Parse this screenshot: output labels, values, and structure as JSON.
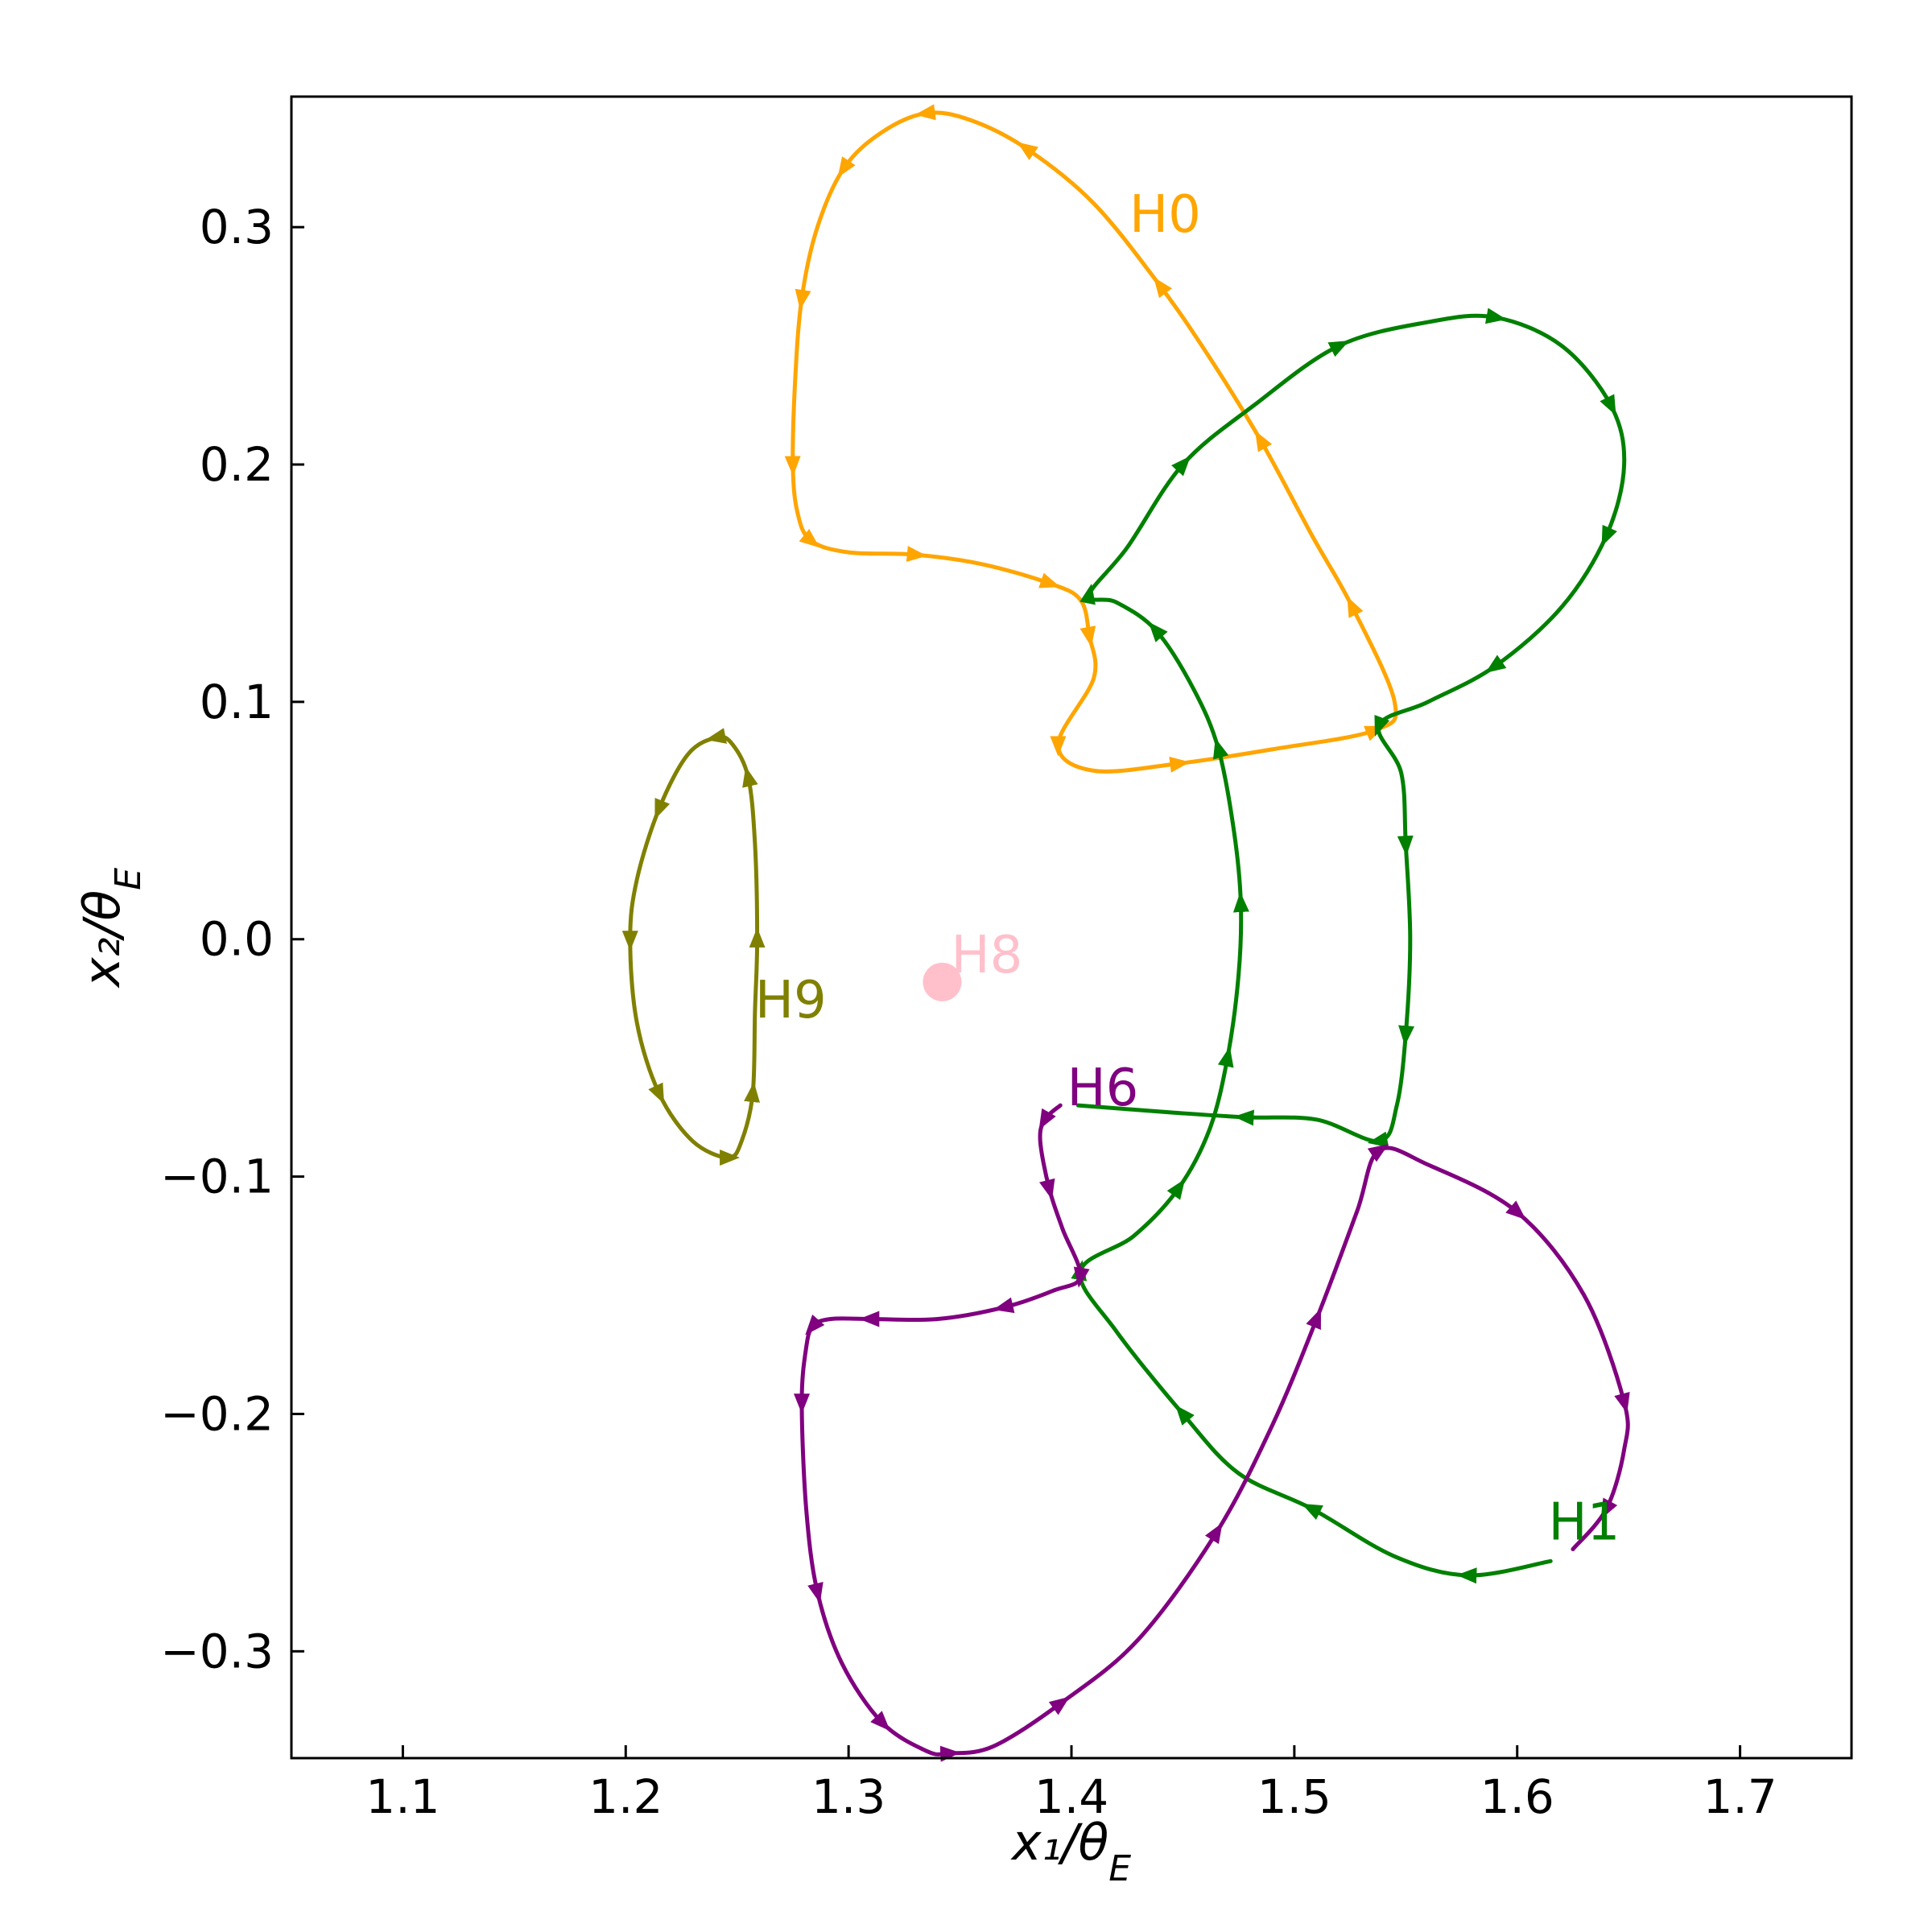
{
  "chart_data": {
    "type": "line",
    "xlabel": "x₁/θ_E",
    "ylabel": "x₂/θ_E",
    "xlim": [
      1.05,
      1.75
    ],
    "ylim": [
      -0.345,
      0.355
    ],
    "xticks": [
      1.1,
      1.2,
      1.3,
      1.4,
      1.5,
      1.6,
      1.7
    ],
    "xtick_labels": [
      "1.1",
      "1.2",
      "1.3",
      "1.4",
      "1.5",
      "1.6",
      "1.7"
    ],
    "yticks": [
      0.3,
      0.2,
      0.1,
      0.0,
      -0.1,
      -0.2,
      -0.3
    ],
    "ytick_labels": [
      "0.3",
      "0.2",
      "0.1",
      "0.0",
      "−0.1",
      "−0.2",
      "−0.3"
    ],
    "grid": false,
    "legend": "none",
    "series": [
      {
        "name": "H0",
        "color": "#FFA500",
        "label_at": [
          1.426,
          0.298
        ],
        "points": [
          [
            1.41,
            0.11
          ],
          [
            1.394,
            0.082
          ],
          [
            1.41,
            0.071
          ],
          [
            1.448,
            0.074
          ],
          [
            1.49,
            0.08
          ],
          [
            1.536,
            0.088
          ],
          [
            1.545,
            0.1
          ],
          [
            1.526,
            0.14
          ],
          [
            1.508,
            0.17
          ],
          [
            1.485,
            0.21
          ],
          [
            1.462,
            0.245
          ],
          [
            1.44,
            0.275
          ],
          [
            1.41,
            0.31
          ],
          [
            1.38,
            0.333
          ],
          [
            1.355,
            0.345
          ],
          [
            1.335,
            0.348
          ],
          [
            1.315,
            0.34
          ],
          [
            1.298,
            0.325
          ],
          [
            1.286,
            0.3
          ],
          [
            1.279,
            0.27
          ],
          [
            1.276,
            0.235
          ],
          [
            1.275,
            0.2
          ],
          [
            1.277,
            0.18
          ],
          [
            1.283,
            0.168
          ],
          [
            1.3,
            0.163
          ],
          [
            1.33,
            0.162
          ],
          [
            1.36,
            0.158
          ],
          [
            1.39,
            0.15
          ],
          [
            1.404,
            0.143
          ],
          [
            1.408,
            0.128
          ],
          [
            1.41,
            0.11
          ]
        ]
      },
      {
        "name": "H1",
        "color": "#008000",
        "label_at": [
          1.614,
          -0.253
        ],
        "points": [
          [
            1.615,
            -0.262
          ],
          [
            1.578,
            -0.268
          ],
          [
            1.545,
            -0.26
          ],
          [
            1.508,
            -0.24
          ],
          [
            1.475,
            -0.225
          ],
          [
            1.45,
            -0.2
          ],
          [
            1.42,
            -0.165
          ],
          [
            1.404,
            -0.14
          ],
          [
            1.428,
            -0.125
          ],
          [
            1.448,
            -0.105
          ],
          [
            1.462,
            -0.08
          ],
          [
            1.47,
            -0.05
          ],
          [
            1.475,
            -0.015
          ],
          [
            1.476,
            0.015
          ],
          [
            1.473,
            0.045
          ],
          [
            1.466,
            0.08
          ],
          [
            1.455,
            0.105
          ],
          [
            1.438,
            0.13
          ],
          [
            1.42,
            0.142
          ],
          [
            1.408,
            0.145
          ],
          [
            1.425,
            0.165
          ],
          [
            1.45,
            0.2
          ],
          [
            1.482,
            0.225
          ],
          [
            1.52,
            0.25
          ],
          [
            1.56,
            0.26
          ],
          [
            1.59,
            0.262
          ],
          [
            1.62,
            0.25
          ],
          [
            1.642,
            0.225
          ],
          [
            1.648,
            0.2
          ],
          [
            1.64,
            0.17
          ],
          [
            1.62,
            0.14
          ],
          [
            1.59,
            0.115
          ],
          [
            1.56,
            0.1
          ],
          [
            1.538,
            0.09
          ],
          [
            1.548,
            0.07
          ],
          [
            1.55,
            0.04
          ],
          [
            1.552,
            0.0
          ],
          [
            1.55,
            -0.04
          ],
          [
            1.546,
            -0.07
          ],
          [
            1.538,
            -0.085
          ],
          [
            1.51,
            -0.076
          ],
          [
            1.478,
            -0.075
          ],
          [
            1.445,
            -0.073
          ],
          [
            1.403,
            -0.07
          ]
        ]
      },
      {
        "name": "H6",
        "color": "#800080",
        "label_at": [
          1.398,
          -0.07
        ],
        "points": [
          [
            1.395,
            -0.07
          ],
          [
            1.388,
            -0.076
          ],
          [
            1.386,
            -0.085
          ],
          [
            1.39,
            -0.105
          ],
          [
            1.396,
            -0.122
          ],
          [
            1.404,
            -0.142
          ],
          [
            1.392,
            -0.148
          ],
          [
            1.37,
            -0.155
          ],
          [
            1.34,
            -0.16
          ],
          [
            1.31,
            -0.16
          ],
          [
            1.292,
            -0.16
          ],
          [
            1.284,
            -0.163
          ],
          [
            1.281,
            -0.172
          ],
          [
            1.279,
            -0.195
          ],
          [
            1.281,
            -0.24
          ],
          [
            1.286,
            -0.275
          ],
          [
            1.297,
            -0.305
          ],
          [
            1.315,
            -0.33
          ],
          [
            1.335,
            -0.342
          ],
          [
            1.345,
            -0.343
          ],
          [
            1.365,
            -0.34
          ],
          [
            1.395,
            -0.322
          ],
          [
            1.43,
            -0.295
          ],
          [
            1.465,
            -0.25
          ],
          [
            1.49,
            -0.205
          ],
          [
            1.51,
            -0.16
          ],
          [
            1.528,
            -0.115
          ],
          [
            1.538,
            -0.089
          ],
          [
            1.56,
            -0.095
          ],
          [
            1.6,
            -0.115
          ],
          [
            1.63,
            -0.15
          ],
          [
            1.648,
            -0.195
          ],
          [
            1.648,
            -0.215
          ],
          [
            1.64,
            -0.24
          ],
          [
            1.625,
            -0.257
          ]
        ]
      },
      {
        "name": "H8",
        "color": "#FFC0CB",
        "marker": "dot",
        "label_at": [
          1.346,
          -0.014
        ],
        "points": [
          [
            1.342,
            -0.018
          ]
        ]
      },
      {
        "name": "H9",
        "color": "#808000",
        "label_at": [
          1.258,
          -0.033
        ],
        "points": [
          [
            1.258,
            -0.03
          ],
          [
            1.259,
            0.0
          ],
          [
            1.258,
            0.04
          ],
          [
            1.255,
            0.068
          ],
          [
            1.248,
            0.082
          ],
          [
            1.241,
            0.085
          ],
          [
            1.228,
            0.078
          ],
          [
            1.215,
            0.055
          ],
          [
            1.205,
            0.025
          ],
          [
            1.202,
            0.0
          ],
          [
            1.205,
            -0.035
          ],
          [
            1.215,
            -0.065
          ],
          [
            1.23,
            -0.085
          ],
          [
            1.246,
            -0.092
          ],
          [
            1.252,
            -0.085
          ],
          [
            1.257,
            -0.065
          ],
          [
            1.258,
            -0.03
          ]
        ]
      }
    ]
  }
}
